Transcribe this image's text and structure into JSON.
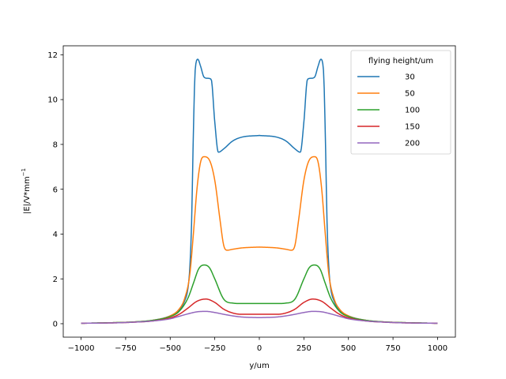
{
  "chart_data": {
    "type": "line",
    "xlabel": "y/um",
    "ylabel_main": "|E|/V*mm",
    "ylabel_sup": "−1",
    "xlim": [
      -1100,
      1100
    ],
    "ylim": [
      -0.6,
      12.4
    ],
    "xticks": [
      -1000,
      -750,
      -500,
      -250,
      0,
      250,
      500,
      750,
      1000
    ],
    "xtick_labels": [
      "−1000",
      "−750",
      "−500",
      "−250",
      "0",
      "250",
      "500",
      "750",
      "1000"
    ],
    "yticks": [
      0,
      2,
      4,
      6,
      8,
      10,
      12
    ],
    "ytick_labels": [
      "0",
      "2",
      "4",
      "6",
      "8",
      "10",
      "12"
    ],
    "legend": {
      "title": "flying height/um",
      "placement": "top-right"
    },
    "series": [
      {
        "name": "30",
        "color": "#1f77b4",
        "x": [
          0,
          100,
          150,
          200,
          230,
          250,
          270,
          290,
          310,
          330,
          345,
          360,
          370,
          380,
          390,
          400,
          420,
          450,
          500,
          600,
          700,
          800,
          1000
        ],
        "y": [
          8.4,
          8.32,
          8.15,
          7.8,
          7.65,
          9.0,
          10.9,
          10.95,
          11.0,
          11.5,
          11.8,
          11.3,
          8.5,
          4.5,
          2.5,
          1.6,
          1.0,
          0.6,
          0.35,
          0.15,
          0.08,
          0.05,
          0.02
        ]
      },
      {
        "name": "50",
        "color": "#ff7f0e",
        "x": [
          0,
          100,
          150,
          180,
          200,
          220,
          250,
          280,
          310,
          330,
          350,
          370,
          390,
          420,
          450,
          500,
          600,
          700,
          800,
          1000
        ],
        "y": [
          3.42,
          3.38,
          3.32,
          3.28,
          3.5,
          4.6,
          6.4,
          7.3,
          7.45,
          7.2,
          6.0,
          4.0,
          2.2,
          1.1,
          0.65,
          0.35,
          0.15,
          0.08,
          0.05,
          0.02
        ]
      },
      {
        "name": "100",
        "color": "#2ca02c",
        "x": [
          0,
          100,
          150,
          200,
          250,
          280,
          310,
          340,
          370,
          400,
          450,
          500,
          600,
          700,
          800,
          1000
        ],
        "y": [
          0.9,
          0.9,
          0.92,
          1.1,
          2.0,
          2.5,
          2.62,
          2.45,
          1.8,
          1.15,
          0.55,
          0.32,
          0.15,
          0.08,
          0.05,
          0.02
        ]
      },
      {
        "name": "150",
        "color": "#d62728",
        "x": [
          0,
          100,
          150,
          200,
          250,
          300,
          350,
          400,
          450,
          500,
          600,
          700,
          800,
          1000
        ],
        "y": [
          0.42,
          0.42,
          0.48,
          0.65,
          0.95,
          1.1,
          1.0,
          0.7,
          0.42,
          0.26,
          0.12,
          0.07,
          0.04,
          0.02
        ]
      },
      {
        "name": "200",
        "color": "#9467bd",
        "x": [
          0,
          100,
          150,
          200,
          250,
          300,
          350,
          400,
          450,
          500,
          600,
          700,
          800,
          1000
        ],
        "y": [
          0.27,
          0.3,
          0.35,
          0.42,
          0.5,
          0.55,
          0.53,
          0.44,
          0.33,
          0.22,
          0.12,
          0.07,
          0.04,
          0.02
        ]
      }
    ]
  }
}
